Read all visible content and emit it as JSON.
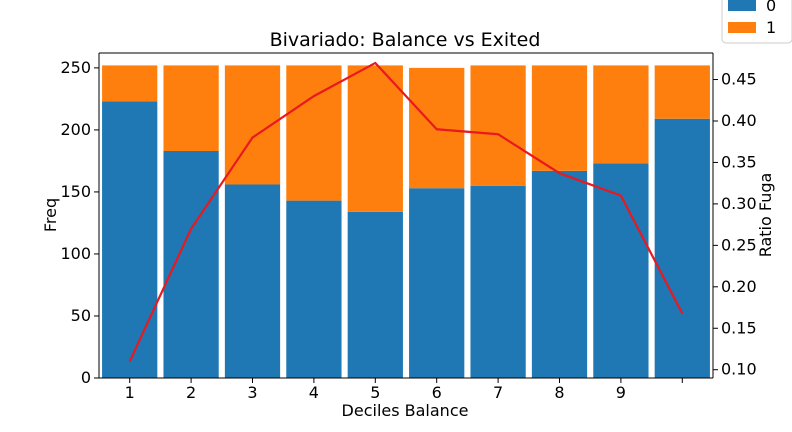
{
  "chart_data": {
    "type": "bar",
    "stacked": true,
    "title": "Bivariado: Balance vs Exited",
    "xlabel": "Deciles Balance",
    "ylabel": "Freq",
    "ylabel_right": "Ratio Fuga",
    "categories": [
      "1",
      "2",
      "3",
      "4",
      "5",
      "6",
      "7",
      "8",
      "9",
      ""
    ],
    "series": [
      {
        "name": "0",
        "color": "#1f77b4",
        "values": [
          223,
          183,
          156,
          143,
          134,
          153,
          155,
          167,
          173,
          209
        ]
      },
      {
        "name": "1",
        "color": "#ff7f0e",
        "values": [
          29,
          69,
          96,
          109,
          118,
          97,
          97,
          85,
          79,
          43
        ]
      }
    ],
    "line": {
      "color": "#e8191f",
      "axis": "right",
      "values": [
        0.11,
        0.27,
        0.38,
        0.43,
        0.47,
        0.39,
        0.384,
        0.337,
        0.31,
        0.168
      ]
    },
    "ylim": [
      0,
      262
    ],
    "yticks": [
      0,
      50,
      100,
      150,
      200,
      250
    ],
    "ylim_right": [
      0.09,
      0.482
    ],
    "yticks_right": [
      "0.10",
      "0.15",
      "0.20",
      "0.25",
      "0.30",
      "0.35",
      "0.40",
      "0.45"
    ],
    "legend": {
      "placement": "top-right",
      "entries": [
        "0",
        "1"
      ]
    }
  }
}
